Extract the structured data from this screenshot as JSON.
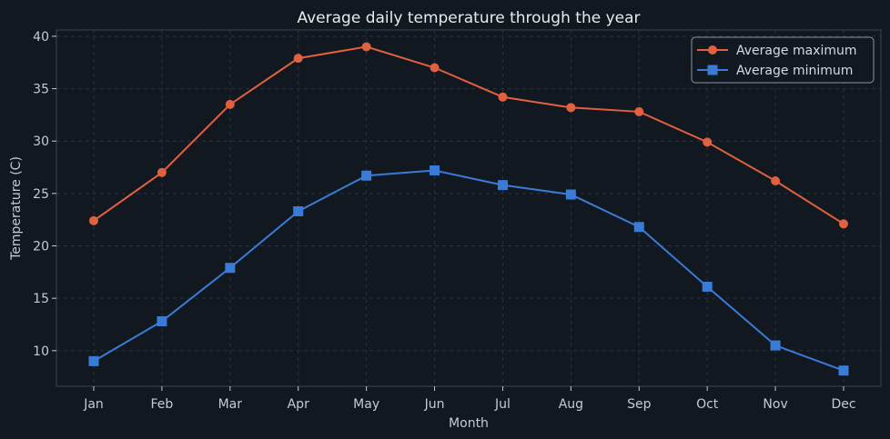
{
  "chart_data": {
    "type": "line",
    "title": "Average daily temperature through the year",
    "xlabel": "Month",
    "ylabel": "Temperature (C)",
    "categories": [
      "Jan",
      "Feb",
      "Mar",
      "Apr",
      "May",
      "Jun",
      "Jul",
      "Aug",
      "Sep",
      "Oct",
      "Nov",
      "Dec"
    ],
    "ylim": [
      6.6,
      40.6
    ],
    "yticks": [
      10,
      15,
      20,
      25,
      30,
      35,
      40
    ],
    "grid": true,
    "legend_position": "top-right",
    "series": [
      {
        "name": "Average maximum",
        "color": "#e0603f",
        "marker": "circle",
        "values": [
          22.4,
          27.0,
          33.5,
          37.9,
          39.0,
          37.0,
          34.2,
          33.2,
          32.8,
          29.9,
          26.2,
          22.1
        ]
      },
      {
        "name": "Average minimum",
        "color": "#3a7bd5",
        "marker": "square",
        "values": [
          9.0,
          12.8,
          17.9,
          23.3,
          26.7,
          27.2,
          25.8,
          24.9,
          21.8,
          16.1,
          10.5,
          8.1
        ]
      }
    ]
  },
  "colors": {
    "background": "#111820",
    "plot_border": "#3a4652",
    "grid": "#26333d"
  }
}
